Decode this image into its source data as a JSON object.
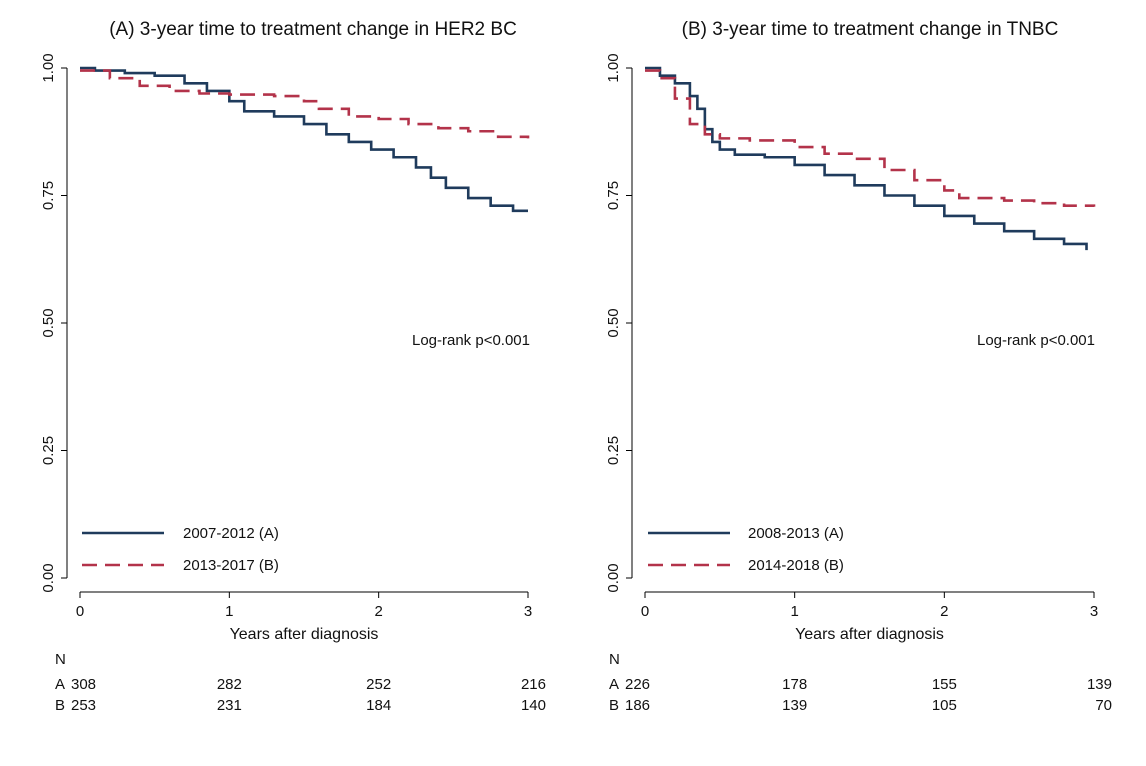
{
  "chart_data": [
    {
      "type": "line",
      "title": "(A) 3-year time to treatment change in HER2 BC",
      "xlabel": "Years after diagnosis",
      "ylabel": "",
      "xlim": [
        0,
        3
      ],
      "ylim": [
        0,
        1
      ],
      "x_ticks": [
        "0",
        "1",
        "2",
        "3"
      ],
      "y_ticks": [
        "0.00",
        "0.25",
        "0.50",
        "0.75",
        "1.00"
      ],
      "grid": false,
      "legend_position": "bottom-left",
      "annotation": "Log-rank p<0.001",
      "series": [
        {
          "name": "2007-2012 (A)",
          "color": "#1f3b5c",
          "style": "solid",
          "x": [
            0,
            0.1,
            0.3,
            0.5,
            0.7,
            0.85,
            1.0,
            1.1,
            1.3,
            1.5,
            1.65,
            1.8,
            1.95,
            2.1,
            2.25,
            2.35,
            2.45,
            2.6,
            2.75,
            2.9,
            3.0
          ],
          "y": [
            1.0,
            0.995,
            0.99,
            0.985,
            0.97,
            0.955,
            0.935,
            0.915,
            0.905,
            0.89,
            0.87,
            0.855,
            0.84,
            0.825,
            0.805,
            0.785,
            0.765,
            0.745,
            0.73,
            0.72,
            0.72
          ]
        },
        {
          "name": "2013-2017 (B)",
          "color": "#b3334a",
          "style": "dashed",
          "x": [
            0,
            0.2,
            0.4,
            0.6,
            0.8,
            1.0,
            1.3,
            1.5,
            1.6,
            1.8,
            2.0,
            2.2,
            2.4,
            2.6,
            2.8,
            3.0
          ],
          "y": [
            0.995,
            0.98,
            0.965,
            0.955,
            0.95,
            0.948,
            0.945,
            0.935,
            0.92,
            0.905,
            0.9,
            0.89,
            0.882,
            0.876,
            0.865,
            0.862
          ]
        }
      ],
      "risk_table": {
        "header": "N",
        "times": [
          0,
          1,
          2,
          3
        ],
        "rows": [
          {
            "label": "A",
            "values": [
              "308",
              "282",
              "252",
              "216"
            ]
          },
          {
            "label": "B",
            "values": [
              "253",
              "231",
              "184",
              "140"
            ]
          }
        ]
      }
    },
    {
      "type": "line",
      "title": "(B) 3-year time to treatment change in TNBC",
      "xlabel": "Years after diagnosis",
      "ylabel": "",
      "xlim": [
        0,
        3
      ],
      "ylim": [
        0,
        1
      ],
      "x_ticks": [
        "0",
        "1",
        "2",
        "3"
      ],
      "y_ticks": [
        "0.00",
        "0.25",
        "0.50",
        "0.75",
        "1.00"
      ],
      "grid": false,
      "legend_position": "bottom-left",
      "annotation": "Log-rank p<0.001",
      "series": [
        {
          "name": "2008-2013 (A)",
          "color": "#1f3b5c",
          "style": "solid",
          "x": [
            0,
            0.1,
            0.2,
            0.3,
            0.35,
            0.4,
            0.45,
            0.5,
            0.6,
            0.8,
            1.0,
            1.2,
            1.4,
            1.6,
            1.8,
            2.0,
            2.2,
            2.4,
            2.6,
            2.8,
            2.95
          ],
          "y": [
            1.0,
            0.985,
            0.97,
            0.945,
            0.92,
            0.88,
            0.855,
            0.84,
            0.83,
            0.825,
            0.81,
            0.79,
            0.77,
            0.75,
            0.73,
            0.71,
            0.695,
            0.68,
            0.665,
            0.655,
            0.643
          ]
        },
        {
          "name": "2014-2018 (B)",
          "color": "#b3334a",
          "style": "dashed",
          "x": [
            0,
            0.1,
            0.2,
            0.3,
            0.4,
            0.5,
            0.7,
            1.0,
            1.2,
            1.4,
            1.6,
            1.8,
            2.0,
            2.1,
            2.4,
            2.6,
            2.8,
            3.0
          ],
          "y": [
            0.995,
            0.98,
            0.94,
            0.89,
            0.87,
            0.862,
            0.858,
            0.845,
            0.832,
            0.822,
            0.8,
            0.78,
            0.76,
            0.745,
            0.74,
            0.735,
            0.73,
            0.728
          ]
        }
      ],
      "risk_table": {
        "header": "N",
        "times": [
          0,
          1,
          2,
          3
        ],
        "rows": [
          {
            "label": "A",
            "values": [
              "226",
              "178",
              "155",
              "139"
            ]
          },
          {
            "label": "B",
            "values": [
              "186",
              "139",
              "105",
              "70"
            ]
          }
        ]
      }
    }
  ]
}
